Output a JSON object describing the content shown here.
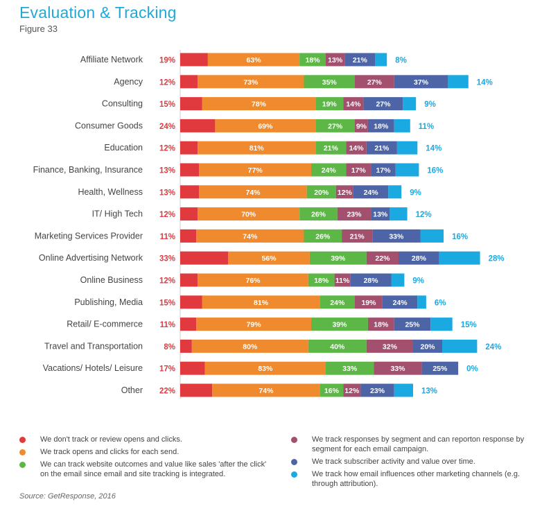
{
  "title": "Evaluation & Tracking",
  "subtitle": "Figure 33",
  "source": "Source: GetResponse, 2016",
  "colors": {
    "red": "#e0393e",
    "orange": "#ef8a2e",
    "green": "#5cb746",
    "purple": "#a2506e",
    "navy": "#4d65a6",
    "cyan": "#1ba9e1",
    "title": "#22a7d6"
  },
  "legend": [
    {
      "text": "We don't track or review opens and clicks.",
      "color": "#e0393e"
    },
    {
      "text": "We track opens and clicks for each send.",
      "color": "#ef8a2e"
    },
    {
      "text": "We can track website outcomes and value like sales 'after the click' on the email since email and site tracking is integrated.",
      "color": "#5cb746"
    },
    {
      "text": "We track responses by segment and can reporton response by segment for each email campaign.",
      "color": "#a2506e"
    },
    {
      "text": "We track subscriber activity and value over time.",
      "color": "#4d65a6"
    },
    {
      "text": "We track how email influences other marketing channels (e.g. through attribution).",
      "color": "#1ba9e1"
    }
  ],
  "chart_data": {
    "type": "bar",
    "orientation": "horizontal",
    "stacked": true,
    "title": "Evaluation & Tracking",
    "categories": [
      "Affiliate Network",
      "Agency",
      "Consulting",
      "Consumer Goods",
      "Education",
      "Finance, Banking, Insurance",
      "Health, Wellness",
      "IT/ High Tech",
      "Marketing Services Provider",
      "Online Advertising Network",
      "Online Business",
      "Publishing, Media",
      "Retail/ E-commerce",
      "Travel and Transportation",
      "Vacations/ Hotels/ Leisure",
      "Other"
    ],
    "series": [
      {
        "name": "We don't track or review opens and clicks.",
        "color": "#e0393e",
        "values": [
          19,
          12,
          15,
          24,
          12,
          13,
          13,
          12,
          11,
          33,
          12,
          15,
          11,
          8,
          17,
          22
        ]
      },
      {
        "name": "We track opens and clicks for each send.",
        "color": "#ef8a2e",
        "values": [
          63,
          73,
          78,
          69,
          81,
          77,
          74,
          70,
          74,
          56,
          76,
          81,
          79,
          80,
          83,
          74
        ]
      },
      {
        "name": "We can track website outcomes and value like sales 'after the click' on the email since email and site tracking is integrated.",
        "color": "#5cb746",
        "values": [
          18,
          35,
          19,
          27,
          21,
          24,
          20,
          26,
          26,
          39,
          18,
          24,
          39,
          40,
          33,
          16
        ]
      },
      {
        "name": "We track responses by segment and can reporton response by segment for each email campaign.",
        "color": "#a2506e",
        "values": [
          13,
          27,
          14,
          9,
          14,
          17,
          12,
          23,
          21,
          22,
          11,
          19,
          18,
          32,
          33,
          12
        ]
      },
      {
        "name": "We track subscriber activity and value over time.",
        "color": "#4d65a6",
        "values": [
          21,
          37,
          27,
          18,
          21,
          17,
          24,
          13,
          33,
          28,
          28,
          24,
          25,
          20,
          25,
          23
        ]
      },
      {
        "name": "We track how email influences other marketing channels (e.g. through attribution).",
        "color": "#1ba9e1",
        "values": [
          8,
          14,
          9,
          11,
          14,
          16,
          9,
          12,
          16,
          28,
          9,
          6,
          15,
          24,
          0,
          13
        ]
      }
    ],
    "value_suffix": "%"
  }
}
